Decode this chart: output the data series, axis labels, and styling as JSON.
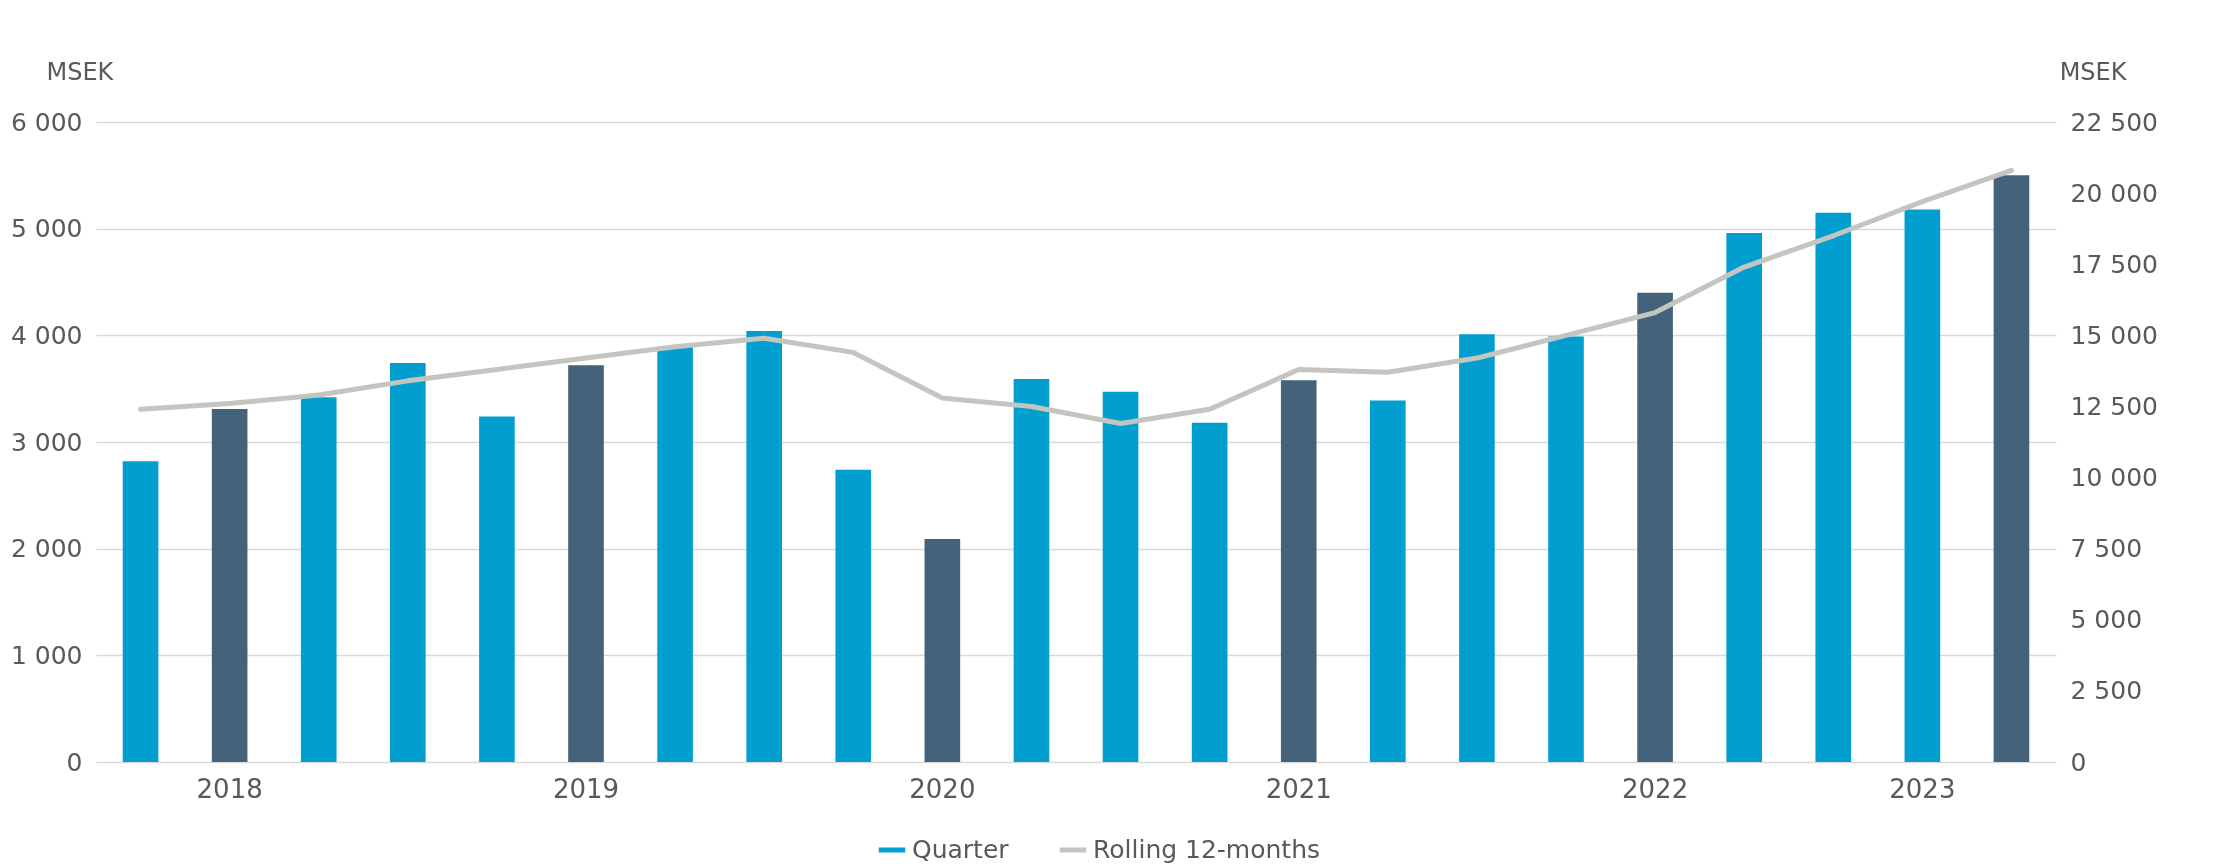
{
  "chart_data": {
    "type": "bar",
    "ylabel": "MSEK",
    "y2label": "MSEK",
    "categories": [
      null,
      "2018",
      null,
      null,
      null,
      "2019",
      null,
      null,
      null,
      "2020",
      null,
      null,
      null,
      "2021",
      null,
      null,
      null,
      "2022",
      null,
      null,
      "2023",
      null
    ],
    "series": [
      {
        "name": "Quarter",
        "color": "#009fd0",
        "colors": [
          "#009fd0",
          "#44637a",
          "#009fd0",
          "#009fd0",
          "#009fd0",
          "#44637a",
          "#009fd0",
          "#009fd0",
          "#009fd0",
          "#44637a",
          "#009fd0",
          "#009fd0",
          "#009fd0",
          "#44637a",
          "#009fd0",
          "#009fd0",
          "#009fd0",
          "#44637a",
          "#009fd0",
          "#009fd0",
          "#009fd0",
          "#44637a"
        ],
        "values": [
          2820,
          3310,
          3420,
          3740,
          3240,
          3720,
          3890,
          4040,
          2740,
          2090,
          3590,
          3470,
          3180,
          3580,
          3390,
          4010,
          3990,
          4400,
          4960,
          5150,
          5180,
          5500
        ]
      },
      {
        "name": "Rolling 12-months",
        "type": "line",
        "axis": "y2",
        "color": "#c4c5bf",
        "values": [
          12400,
          12600,
          12900,
          13400,
          13800,
          14200,
          14600,
          14900,
          14400,
          12800,
          12500,
          11900,
          12400,
          13800,
          13700,
          14200,
          15000,
          15800,
          17400,
          18500,
          19700,
          20800
        ]
      }
    ],
    "ylim": [
      0,
      6000
    ],
    "yticks": [
      0,
      {
        "value": 1000,
        "label": "1 000"
      },
      {
        "value": 2000,
        "label": "2 000"
      },
      {
        "value": 3000,
        "label": "3 000"
      },
      {
        "value": 4000,
        "label": "4 000"
      },
      {
        "value": 5000,
        "label": "5 000"
      },
      {
        "value": 6000,
        "label": "6 000"
      }
    ],
    "y2lim": [
      0,
      22500
    ],
    "y2ticks": [
      0,
      {
        "value": 2500,
        "label": "2 500"
      },
      {
        "value": 5000,
        "label": "5 000"
      },
      {
        "value": 7500,
        "label": "7 500"
      },
      {
        "value": 10000,
        "label": "10 000"
      },
      {
        "value": 12500,
        "label": "12 500"
      },
      {
        "value": 15000,
        "label": "15 000"
      },
      {
        "value": 17500,
        "label": "17 500"
      },
      {
        "value": 20000,
        "label": "20 000"
      },
      {
        "value": 22500,
        "label": "22 500"
      }
    ],
    "grid": "y",
    "legend": "bottom",
    "marker": "none",
    "line_style": "solid"
  }
}
